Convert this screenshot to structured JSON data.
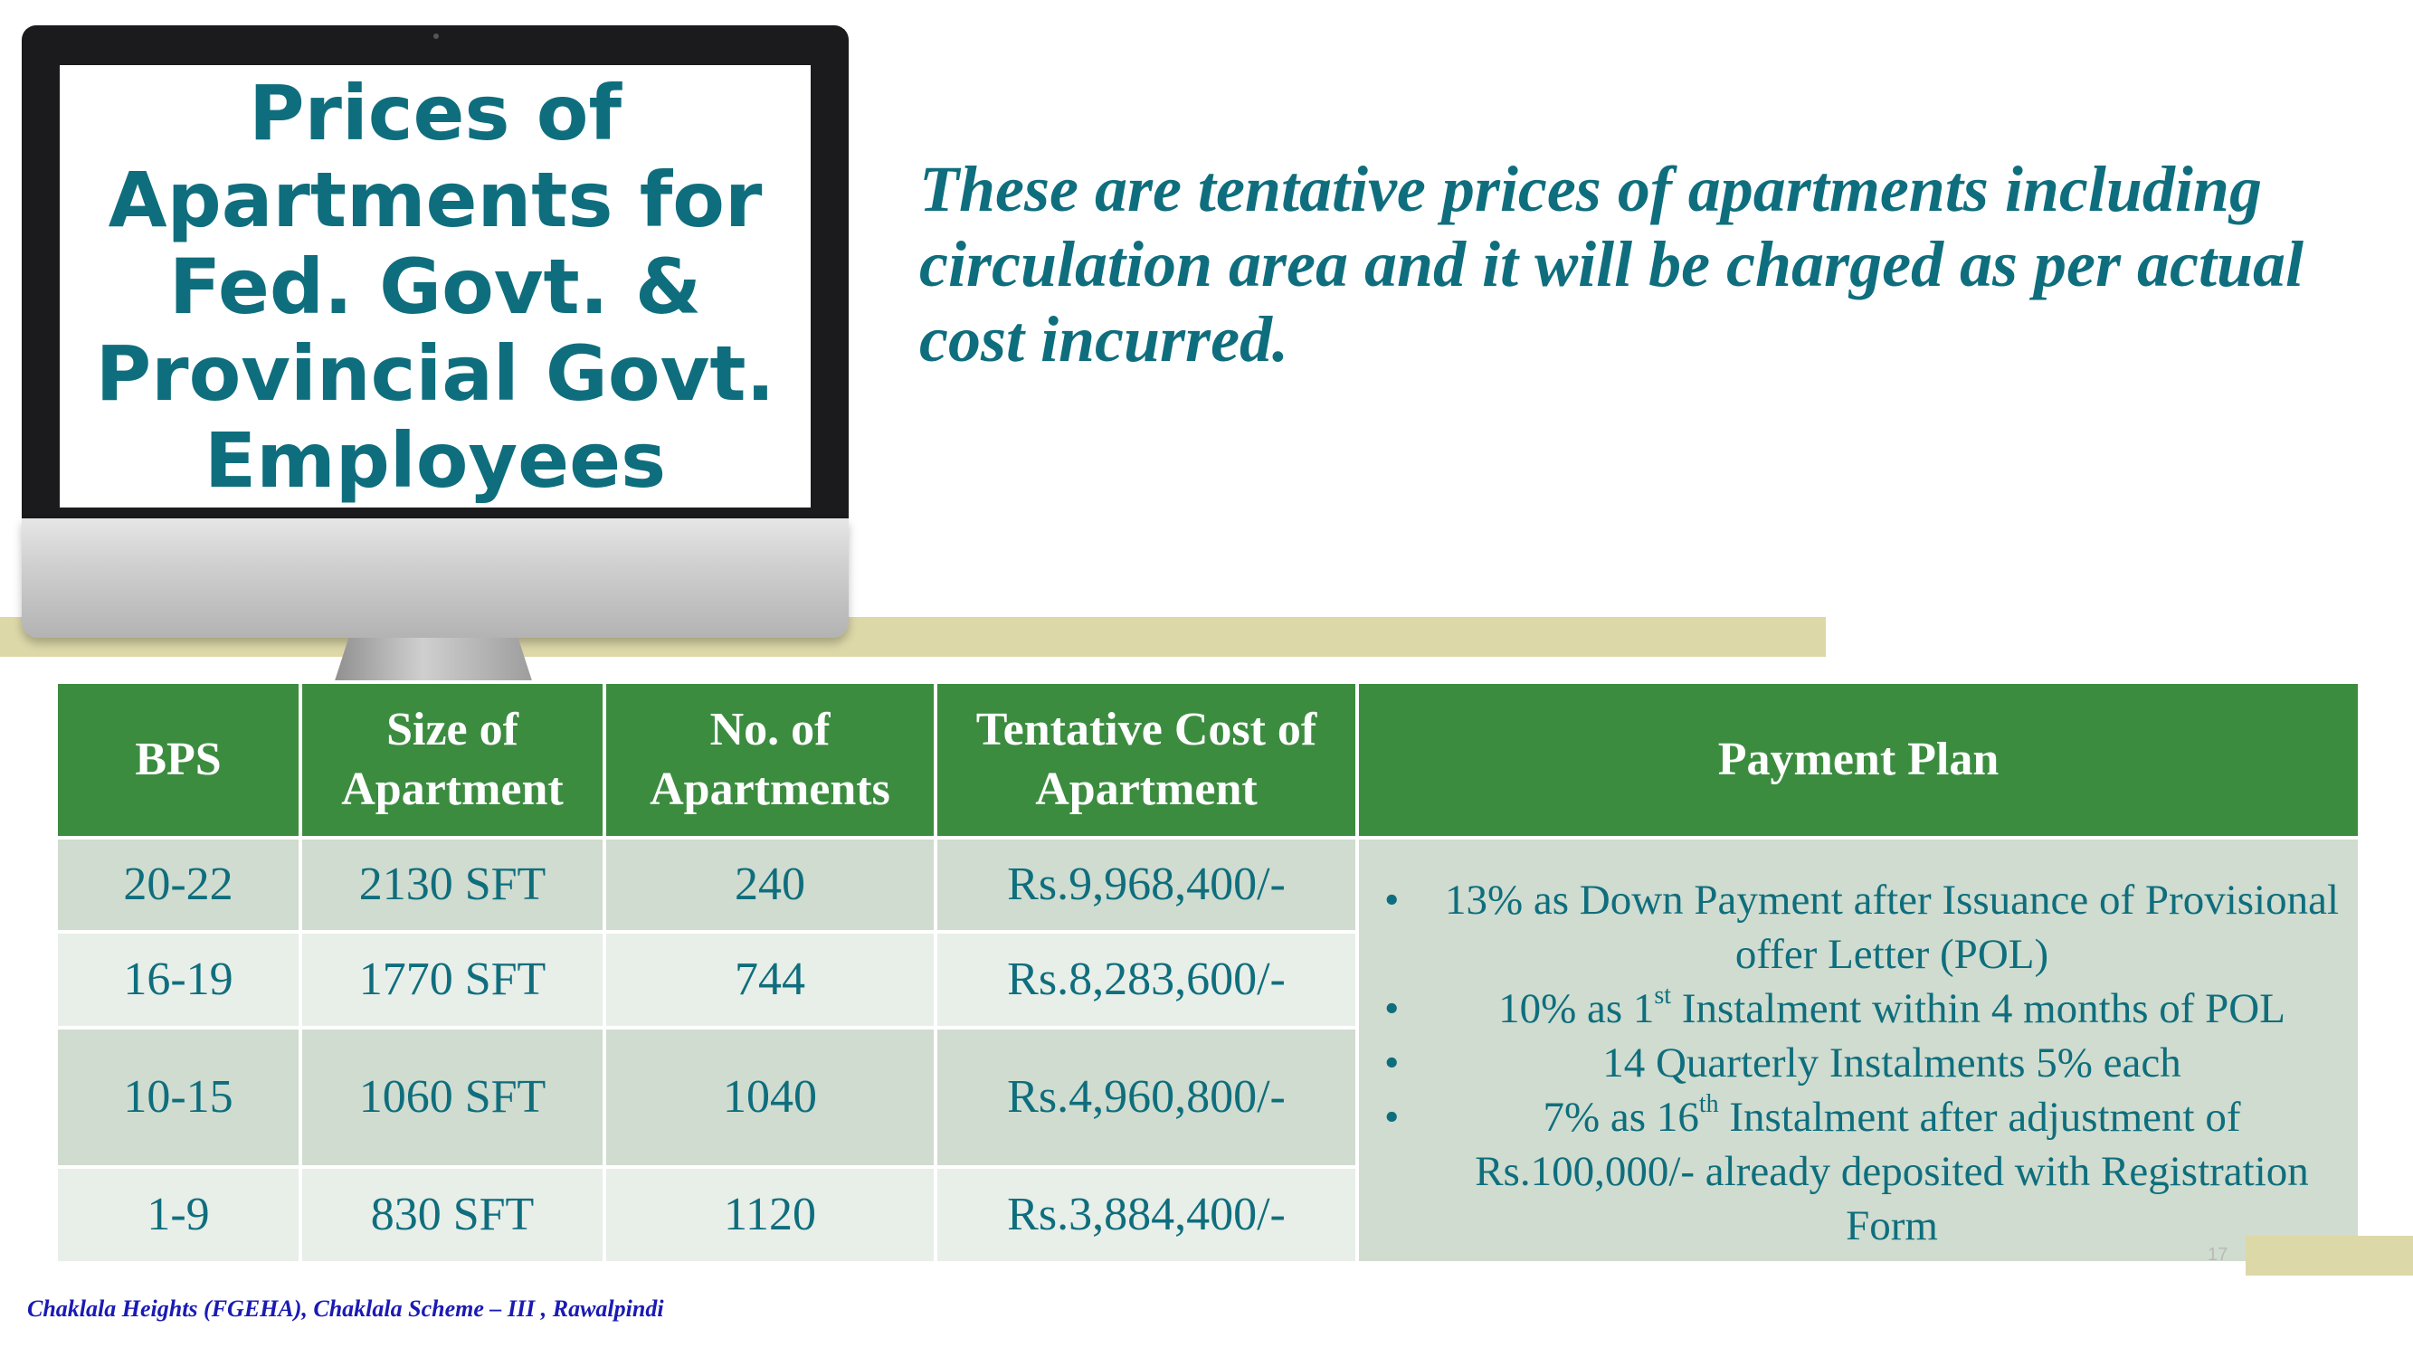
{
  "screen": {
    "title": "Prices of\nApartments for\nFed. Govt. &\nProvincial Govt.\nEmployees"
  },
  "intro": "These are tentative prices of apartments including circulation area and it will be charged as per actual cost incurred.",
  "table": {
    "headers": {
      "bps": "BPS",
      "size": "Size of Apartment",
      "count": "No. of Apartments",
      "cost": "Tentative Cost of Apartment",
      "plan": "Payment Plan"
    },
    "rows": [
      {
        "bps": "20-22",
        "size": "2130 SFT",
        "count": "240",
        "cost": "Rs.9,968,400/-"
      },
      {
        "bps": "16-19",
        "size": "1770 SFT",
        "count": "744",
        "cost": "Rs.8,283,600/-"
      },
      {
        "bps": "10-15",
        "size": "1060 SFT",
        "count": "1040",
        "cost": "Rs.4,960,800/-"
      },
      {
        "bps": "1-9",
        "size": "830 SFT",
        "count": "1120",
        "cost": "Rs.3,884,400/-"
      }
    ],
    "plan": {
      "item1": "13% as Down Payment after  Issuance of Provisional offer Letter (POL)",
      "item2_pre": "10% as 1",
      "item2_sup": "st",
      "item2_post": " Instalment within 4 months of POL",
      "item3": "14 Quarterly Instalments 5% each",
      "item4_pre": "7% as 16",
      "item4_sup": "th",
      "item4_post": " Instalment after adjustment of Rs.100,000/- already deposited with Registration Form"
    }
  },
  "page_number": "17",
  "footer": "Chaklala Heights (FGEHA), Chaklala Scheme – III , Rawalpindi",
  "colors": {
    "teal_text": "#0f6e7d",
    "header_green": "#3c8c40",
    "row_dark": "#cfdccf",
    "row_light": "#e8eee8",
    "accent_bar": "#ddd8a8",
    "footer_blue": "#1a1ab4"
  }
}
